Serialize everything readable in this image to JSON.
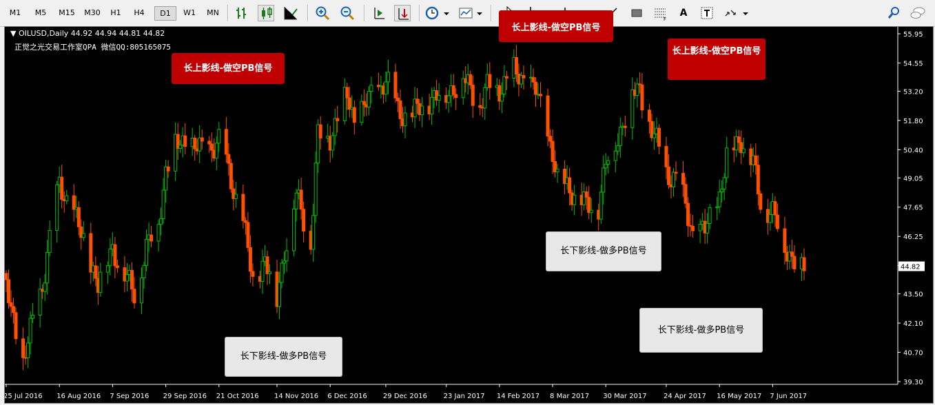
{
  "toolbar": {
    "timeframes": [
      "M1",
      "M5",
      "M15",
      "M30",
      "H1",
      "H4",
      "D1",
      "W1",
      "MN"
    ],
    "active_timeframe": "D1",
    "drawing_text_tool": "A"
  },
  "chart": {
    "symbol_line": "OILUSD,Daily  44.92 44.94 44.81 44.82",
    "watermark": "正觉之光交易工作室QPA 微信QQ:805165075",
    "current_price": "44.82",
    "price_labels": [
      "55.95",
      "54.55",
      "53.20",
      "51.80",
      "50.40",
      "49.05",
      "47.65",
      "46.25",
      "44.85",
      "43.50",
      "42.10",
      "40.70",
      "39.30"
    ],
    "date_labels": [
      "25 Jul 2016",
      "16 Aug 2016",
      "7 Sep 2016",
      "29 Sep 2016",
      "21 Oct 2016",
      "14 Nov 2016",
      "6 Dec 2016",
      "29 Dec 2016",
      "23 Jan 2017",
      "14 Feb 2017",
      "8 Mar 2017",
      "30 Mar 2017",
      "24 Apr 2017",
      "16 May 2017",
      "7 Jun 2017"
    ],
    "colors": {
      "bull": "#00c000",
      "bear": "#ff5000",
      "background": "#000000",
      "axis": "#ffffff"
    }
  },
  "annotations": [
    {
      "text": "长上影线-做空PB信号",
      "style": "red"
    },
    {
      "text": "长上影线-做空PB信号",
      "style": "red"
    },
    {
      "text": "长上影线-做空PB信号",
      "style": "red"
    },
    {
      "text": "长下影线-做多PB信号",
      "style": "gray"
    },
    {
      "text": "长下影线-做多PB信号",
      "style": "gray"
    },
    {
      "text": "长下影线-做多PB信号",
      "style": "gray"
    }
  ],
  "chart_data": {
    "type": "candlestick",
    "ylim": [
      39.3,
      55.95
    ],
    "anchors": [
      [
        "25 Jul 2016",
        43.8
      ],
      [
        "1 Aug 2016",
        40.2
      ],
      [
        "9 Aug 2016",
        44.0
      ],
      [
        "16 Aug 2016",
        48.8
      ],
      [
        "22 Aug 2016",
        47.3
      ],
      [
        "29 Aug 2016",
        45.0
      ],
      [
        "1 Sep 2016",
        43.9
      ],
      [
        "7 Sep 2016",
        45.8
      ],
      [
        "12 Sep 2016",
        44.3
      ],
      [
        "16 Sep 2016",
        43.6
      ],
      [
        "21 Sep 2016",
        45.6
      ],
      [
        "26 Sep 2016",
        47.0
      ],
      [
        "29 Sep 2016",
        49.4
      ],
      [
        "3 Oct 2016",
        50.6
      ],
      [
        "7 Oct 2016",
        50.8
      ],
      [
        "14 Oct 2016",
        50.3
      ],
      [
        "21 Oct 2016",
        50.8
      ],
      [
        "26 Oct 2016",
        49.0
      ],
      [
        "31 Oct 2016",
        46.9
      ],
      [
        "4 Nov 2016",
        44.1
      ],
      [
        "9 Nov 2016",
        45.1
      ],
      [
        "14 Nov 2016",
        43.3
      ],
      [
        "17 Nov 2016",
        45.6
      ],
      [
        "22 Nov 2016",
        48.2
      ],
      [
        "28 Nov 2016",
        46.0
      ],
      [
        "1 Dec 2016",
        51.0
      ],
      [
        "6 Dec 2016",
        51.1
      ],
      [
        "13 Dec 2016",
        53.0
      ],
      [
        "16 Dec 2016",
        51.8
      ],
      [
        "21 Dec 2016",
        52.6
      ],
      [
        "29 Dec 2016",
        53.8
      ],
      [
        "3 Jan 2017",
        52.3
      ],
      [
        "9 Jan 2017",
        52.0
      ],
      [
        "16 Jan 2017",
        52.8
      ],
      [
        "23 Jan 2017",
        53.1
      ],
      [
        "30 Jan 2017",
        53.8
      ],
      [
        "6 Feb 2017",
        52.6
      ],
      [
        "9 Feb 2017",
        53.3
      ],
      [
        "14 Feb 2017",
        53.4
      ],
      [
        "20 Feb 2017",
        54.1
      ],
      [
        "24 Feb 2017",
        53.8
      ],
      [
        "1 Mar 2017",
        53.2
      ],
      [
        "8 Mar 2017",
        50.3
      ],
      [
        "10 Mar 2017",
        48.9
      ],
      [
        "16 Mar 2017",
        48.5
      ],
      [
        "22 Mar 2017",
        47.6
      ],
      [
        "27 Mar 2017",
        47.8
      ],
      [
        "30 Mar 2017",
        49.7
      ],
      [
        "4 Apr 2017",
        51.0
      ],
      [
        "10 Apr 2017",
        53.1
      ],
      [
        "13 Apr 2017",
        53.2
      ],
      [
        "19 Apr 2017",
        51.0
      ],
      [
        "24 Apr 2017",
        49.4
      ],
      [
        "28 Apr 2017",
        49.0
      ],
      [
        "2 May 2017",
        47.7
      ],
      [
        "5 May 2017",
        46.4
      ],
      [
        "10 May 2017",
        46.5
      ],
      [
        "16 May 2017",
        48.2
      ],
      [
        "19 May 2017",
        50.0
      ],
      [
        "25 May 2017",
        51.0
      ],
      [
        "30 May 2017",
        49.6
      ],
      [
        "2 Jun 2017",
        47.9
      ],
      [
        "7 Jun 2017",
        47.4
      ],
      [
        "12 Jun 2017",
        45.8
      ],
      [
        "15 Jun 2017",
        45.3
      ],
      [
        "20 Jun 2017",
        44.8
      ]
    ],
    "last": {
      "open": 44.92,
      "high": 44.94,
      "low": 44.81,
      "close": 44.82
    }
  }
}
